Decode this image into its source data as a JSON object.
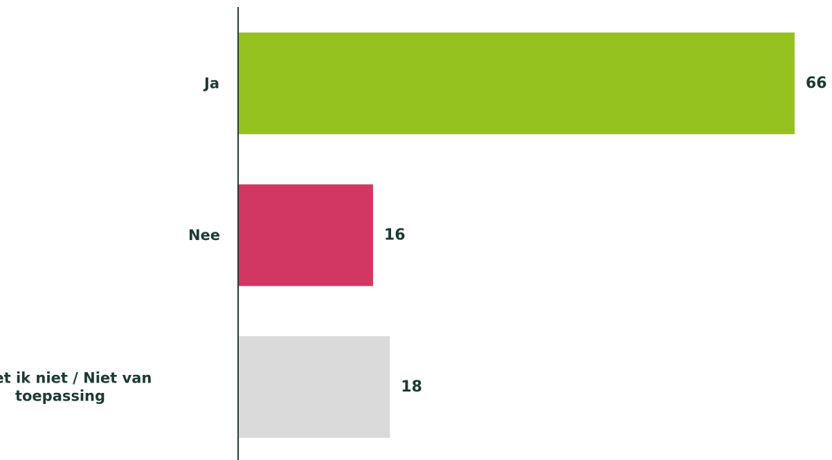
{
  "chart_data": {
    "type": "bar",
    "orientation": "horizontal",
    "categories": [
      [
        "Ja"
      ],
      [
        "Nee"
      ],
      [
        "Weet ik niet / Niet van",
        "toepassing"
      ]
    ],
    "values": [
      66,
      16,
      18
    ],
    "data_labels": [
      "66",
      "16",
      "18"
    ],
    "xlim": [
      0,
      66
    ],
    "grid": false,
    "legend": "none",
    "title": "",
    "xlabel": "",
    "ylabel": ""
  },
  "colors": {
    "bars": [
      "#96c21f",
      "#d23762",
      "#dadada"
    ],
    "text": "#1c3a34",
    "axis": "#1c3a34"
  }
}
